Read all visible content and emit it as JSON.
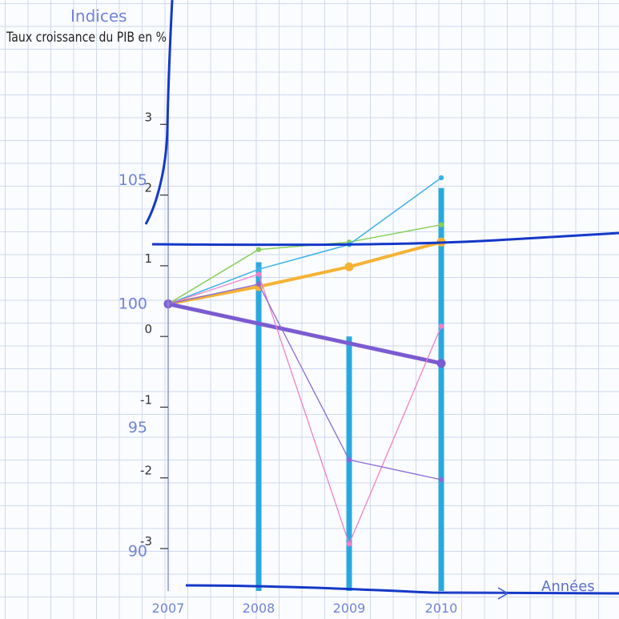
{
  "chart_data": {
    "type": "bar",
    "title": "",
    "ylabel_left_top": "Indices",
    "ylabel_left_main": "Taux croissance du PIB en %",
    "xlabel": "Années",
    "categories": [
      "2007",
      "2008",
      "2009",
      "2010"
    ],
    "growth_axis": {
      "ticks": [
        "-3",
        "-2",
        "-1",
        "0",
        "1",
        "2",
        "3"
      ],
      "ylim": [
        -3.6,
        3.4
      ]
    },
    "index_axis": {
      "ticks": [
        "90",
        "95",
        "100",
        "105"
      ],
      "ylim": [
        88.4,
        108.4
      ]
    },
    "series": [
      {
        "kind": "bar",
        "axis": "growth",
        "color": "#29a8e0",
        "values": [
          null,
          1.05,
          -2.85,
          2.1
        ]
      },
      {
        "kind": "line",
        "axis": "index",
        "color": "#86d05a",
        "width": 1.5,
        "values": [
          100,
          102.2,
          102.5,
          103.2
        ]
      },
      {
        "kind": "line",
        "axis": "index",
        "color": "#3ab2e8",
        "width": 1.5,
        "values": [
          100,
          101.4,
          102.4,
          105.1
        ]
      },
      {
        "kind": "line",
        "axis": "index",
        "color": "#f5b234",
        "width": 4,
        "values": [
          100,
          100.7,
          101.5,
          102.5
        ]
      },
      {
        "kind": "line",
        "axis": "index",
        "color": "#7b5bd1",
        "width": 5,
        "values": [
          100,
          null,
          null,
          97.6
        ]
      },
      {
        "kind": "line",
        "axis": "index",
        "color": "#f27fc8",
        "width": 1.3,
        "values": [
          100,
          101.2,
          90.3,
          99.1
        ]
      },
      {
        "kind": "line",
        "axis": "index",
        "color": "#8a6ad6",
        "width": 1.3,
        "values": [
          100,
          100.8,
          93.7,
          92.9
        ]
      }
    ],
    "legend": "none",
    "grid": true
  }
}
